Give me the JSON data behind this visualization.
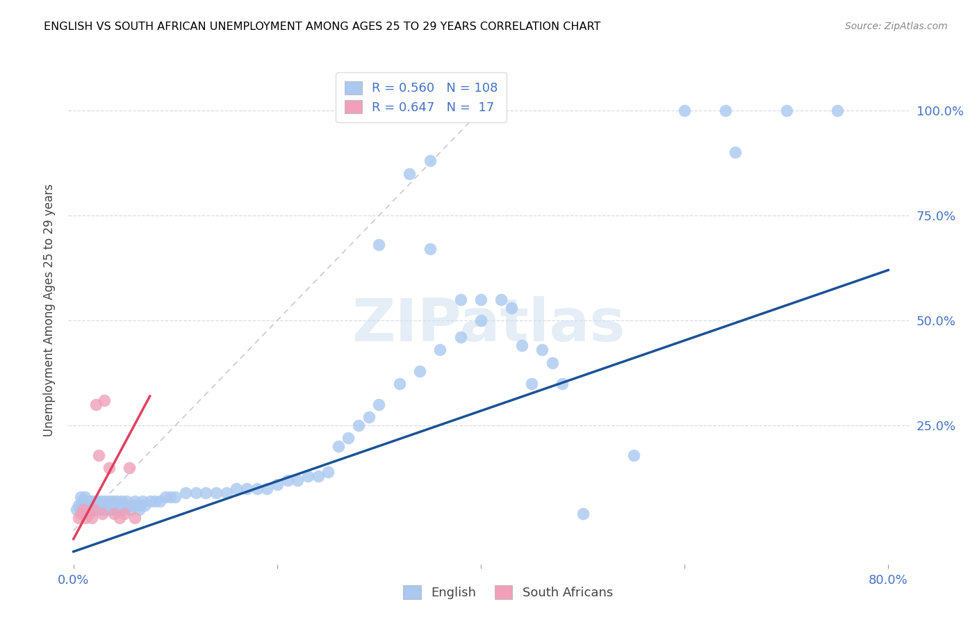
{
  "title": "ENGLISH VS SOUTH AFRICAN UNEMPLOYMENT AMONG AGES 25 TO 29 YEARS CORRELATION CHART",
  "source": "Source: ZipAtlas.com",
  "ylabel": "Unemployment Among Ages 25 to 29 years",
  "english_R": 0.56,
  "english_N": 108,
  "sa_R": 0.647,
  "sa_N": 17,
  "english_color": "#aac8f0",
  "english_line_color": "#1a5296",
  "sa_color": "#f0a0b8",
  "sa_line_color": "#e04060",
  "gray_line_color": "#c8c8d0",
  "grid_color": "#d8dce8",
  "tick_color": "#4472c4",
  "watermark": "ZIPatlas",
  "xlim": [
    -0.005,
    0.82
  ],
  "ylim": [
    -0.08,
    1.13
  ],
  "xticks": [
    0.0,
    0.2,
    0.4,
    0.6,
    0.8
  ],
  "xticklabels": [
    "0.0%",
    "",
    "",
    "",
    "80.0%"
  ],
  "yticks": [
    0.0,
    0.25,
    0.5,
    0.75,
    1.0
  ],
  "yticklabels_right": [
    "",
    "25.0%",
    "50.0%",
    "75.0%",
    "100.0%"
  ],
  "eng_line_x0": 0.0,
  "eng_line_y0": -0.05,
  "eng_line_x1": 0.8,
  "eng_line_y1": 0.62,
  "sa_line_x0": 0.0,
  "sa_line_y0": -0.02,
  "sa_line_x1": 0.075,
  "sa_line_y1": 0.32,
  "gray_line_x0": 0.0,
  "gray_line_y0": 0.0,
  "gray_line_x1": 0.42,
  "gray_line_y1": 1.05,
  "eng_scatter_x": [
    0.003,
    0.005,
    0.006,
    0.007,
    0.008,
    0.009,
    0.01,
    0.011,
    0.012,
    0.013,
    0.014,
    0.015,
    0.016,
    0.017,
    0.018,
    0.019,
    0.02,
    0.021,
    0.022,
    0.023,
    0.024,
    0.025,
    0.026,
    0.027,
    0.028,
    0.029,
    0.03,
    0.031,
    0.032,
    0.033,
    0.034,
    0.035,
    0.036,
    0.037,
    0.038,
    0.039,
    0.04,
    0.041,
    0.042,
    0.043,
    0.044,
    0.045,
    0.046,
    0.047,
    0.048,
    0.049,
    0.05,
    0.052,
    0.054,
    0.056,
    0.058,
    0.06,
    0.062,
    0.064,
    0.066,
    0.068,
    0.07,
    0.075,
    0.08,
    0.085,
    0.09,
    0.095,
    0.1,
    0.11,
    0.12,
    0.13,
    0.14,
    0.15,
    0.16,
    0.17,
    0.18,
    0.19,
    0.2,
    0.21,
    0.22,
    0.23,
    0.24,
    0.25,
    0.26,
    0.27,
    0.28,
    0.29,
    0.3,
    0.32,
    0.34,
    0.36,
    0.38,
    0.4,
    0.42,
    0.44,
    0.46,
    0.48,
    0.35,
    0.4,
    0.45,
    0.5,
    0.55,
    0.6,
    0.64,
    0.65,
    0.7,
    0.75,
    0.43,
    0.47,
    0.38,
    0.33,
    0.3,
    0.35
  ],
  "eng_scatter_y": [
    0.05,
    0.06,
    0.05,
    0.08,
    0.06,
    0.07,
    0.06,
    0.08,
    0.05,
    0.07,
    0.06,
    0.07,
    0.05,
    0.06,
    0.07,
    0.05,
    0.06,
    0.07,
    0.06,
    0.05,
    0.06,
    0.07,
    0.06,
    0.05,
    0.07,
    0.06,
    0.05,
    0.06,
    0.07,
    0.06,
    0.05,
    0.06,
    0.07,
    0.05,
    0.06,
    0.07,
    0.06,
    0.05,
    0.06,
    0.07,
    0.06,
    0.05,
    0.06,
    0.07,
    0.06,
    0.05,
    0.06,
    0.07,
    0.06,
    0.05,
    0.06,
    0.07,
    0.06,
    0.05,
    0.06,
    0.07,
    0.06,
    0.07,
    0.07,
    0.07,
    0.08,
    0.08,
    0.08,
    0.09,
    0.09,
    0.09,
    0.09,
    0.09,
    0.1,
    0.1,
    0.1,
    0.1,
    0.11,
    0.12,
    0.12,
    0.13,
    0.13,
    0.14,
    0.2,
    0.22,
    0.25,
    0.27,
    0.3,
    0.35,
    0.38,
    0.43,
    0.46,
    0.5,
    0.55,
    0.44,
    0.43,
    0.35,
    0.67,
    0.55,
    0.35,
    0.04,
    0.18,
    1.0,
    1.0,
    0.9,
    1.0,
    1.0,
    0.53,
    0.4,
    0.55,
    0.85,
    0.68,
    0.88
  ],
  "sa_scatter_x": [
    0.005,
    0.008,
    0.01,
    0.012,
    0.015,
    0.018,
    0.02,
    0.022,
    0.025,
    0.028,
    0.03,
    0.035,
    0.04,
    0.045,
    0.05,
    0.055,
    0.06
  ],
  "sa_scatter_y": [
    0.03,
    0.04,
    0.05,
    0.03,
    0.04,
    0.03,
    0.05,
    0.3,
    0.18,
    0.04,
    0.31,
    0.15,
    0.04,
    0.03,
    0.04,
    0.15,
    0.03
  ]
}
